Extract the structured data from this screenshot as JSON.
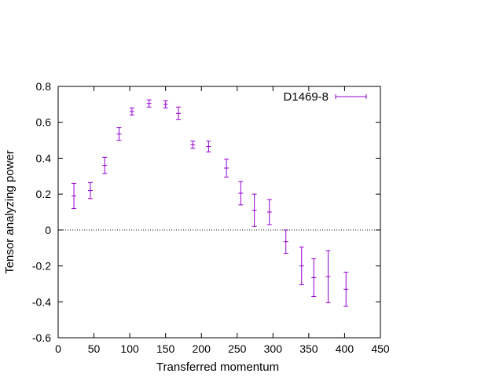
{
  "chart_data": {
    "type": "scatter",
    "title": "",
    "xlabel": "Transferred momentum",
    "ylabel": "Tensor analyzing power",
    "xlim": [
      0,
      450
    ],
    "ylim": [
      -0.6,
      0.8
    ],
    "x_ticks": [
      0,
      50,
      100,
      150,
      200,
      250,
      300,
      350,
      400,
      450
    ],
    "y_ticks": [
      -0.6,
      -0.4,
      -0.2,
      0,
      0.2,
      0.4,
      0.6,
      0.8
    ],
    "x_tick_labels": [
      "0",
      "50",
      "100",
      "150",
      "200",
      "250",
      "300",
      "350",
      "400",
      "450"
    ],
    "y_tick_labels": [
      "-0.6",
      "-0.4",
      "-0.2",
      "0",
      "0.2",
      "0.4",
      "0.6",
      "0.8"
    ],
    "zero_line": true,
    "grid": false,
    "legend_position": "top-right",
    "series": [
      {
        "name": "D1469-8",
        "color": "#9400d3",
        "error_bars": "y",
        "points": [
          {
            "x": 22,
            "y": 0.19,
            "err": 0.07
          },
          {
            "x": 45,
            "y": 0.22,
            "err": 0.045
          },
          {
            "x": 65,
            "y": 0.36,
            "err": 0.045
          },
          {
            "x": 85,
            "y": 0.535,
            "err": 0.035
          },
          {
            "x": 103,
            "y": 0.66,
            "err": 0.02
          },
          {
            "x": 127,
            "y": 0.705,
            "err": 0.02
          },
          {
            "x": 150,
            "y": 0.7,
            "err": 0.02
          },
          {
            "x": 168,
            "y": 0.65,
            "err": 0.035
          },
          {
            "x": 188,
            "y": 0.475,
            "err": 0.02
          },
          {
            "x": 210,
            "y": 0.465,
            "err": 0.03
          },
          {
            "x": 235,
            "y": 0.345,
            "err": 0.05
          },
          {
            "x": 255,
            "y": 0.205,
            "err": 0.065
          },
          {
            "x": 274,
            "y": 0.11,
            "err": 0.09
          },
          {
            "x": 295,
            "y": 0.1,
            "err": 0.07
          },
          {
            "x": 318,
            "y": -0.065,
            "err": 0.065
          },
          {
            "x": 340,
            "y": -0.2,
            "err": 0.105
          },
          {
            "x": 357,
            "y": -0.265,
            "err": 0.105
          },
          {
            "x": 377,
            "y": -0.26,
            "err": 0.145
          },
          {
            "x": 402,
            "y": -0.33,
            "err": 0.095
          }
        ]
      }
    ]
  }
}
